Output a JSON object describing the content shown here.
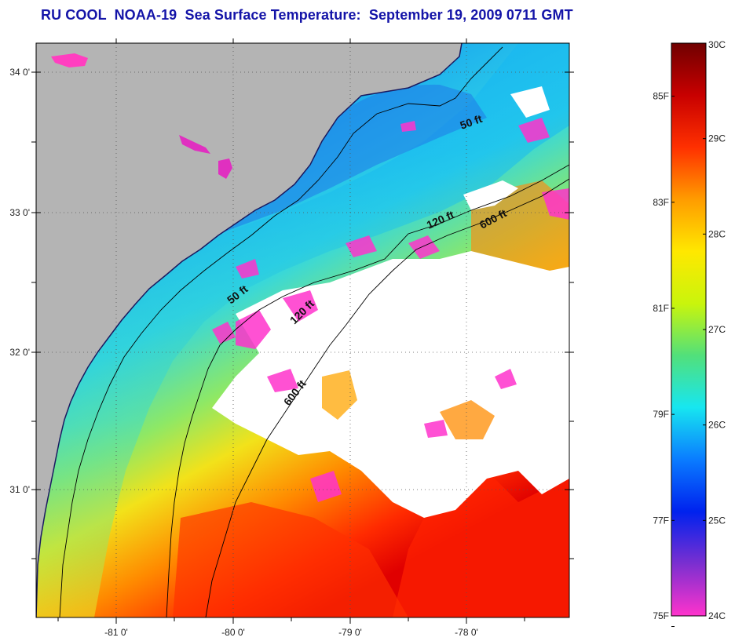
{
  "title": "RU COOL  NOAA-19  Sea Surface Temperature:  September 19, 2009 0711 GMT",
  "map": {
    "lat_labels": [
      "34 0'",
      "33 0'",
      "32 0'",
      "31 0'"
    ],
    "lon_labels": [
      "-81 0'",
      "-80 0'",
      "-79 0'",
      "-78 0'"
    ],
    "depth_contours": [
      {
        "label": "50 ft",
        "placement": "northeast shelf"
      },
      {
        "label": "50 ft",
        "placement": "central shelf"
      },
      {
        "label": "120 ft",
        "placement": "northeast shelf"
      },
      {
        "label": "120 ft",
        "placement": "central shelf"
      },
      {
        "label": "600 ft",
        "placement": "northeast shelf break"
      },
      {
        "label": "600 ft",
        "placement": "central shelf break"
      }
    ],
    "colors": {
      "land": "#b4b4b4",
      "cloud": "#ffffff",
      "coastline": "#000000",
      "title": "#1414a8"
    }
  },
  "colorbar": {
    "celsius_labels": [
      "30C",
      "29C",
      "28C",
      "27C",
      "26C",
      "25C",
      "24C"
    ],
    "fahrenheit_labels": [
      "85F",
      "83F",
      "81F",
      "79F",
      "77F",
      "75F"
    ],
    "range_c": [
      24,
      30
    ],
    "gradient_stops": [
      "#ff33cc",
      "#7b2fd0",
      "#0022ee",
      "#0a7cff",
      "#17e6f0",
      "#52e07a",
      "#c9f50c",
      "#ffe800",
      "#ff9c00",
      "#ff3000",
      "#c80000",
      "#700000"
    ]
  }
}
